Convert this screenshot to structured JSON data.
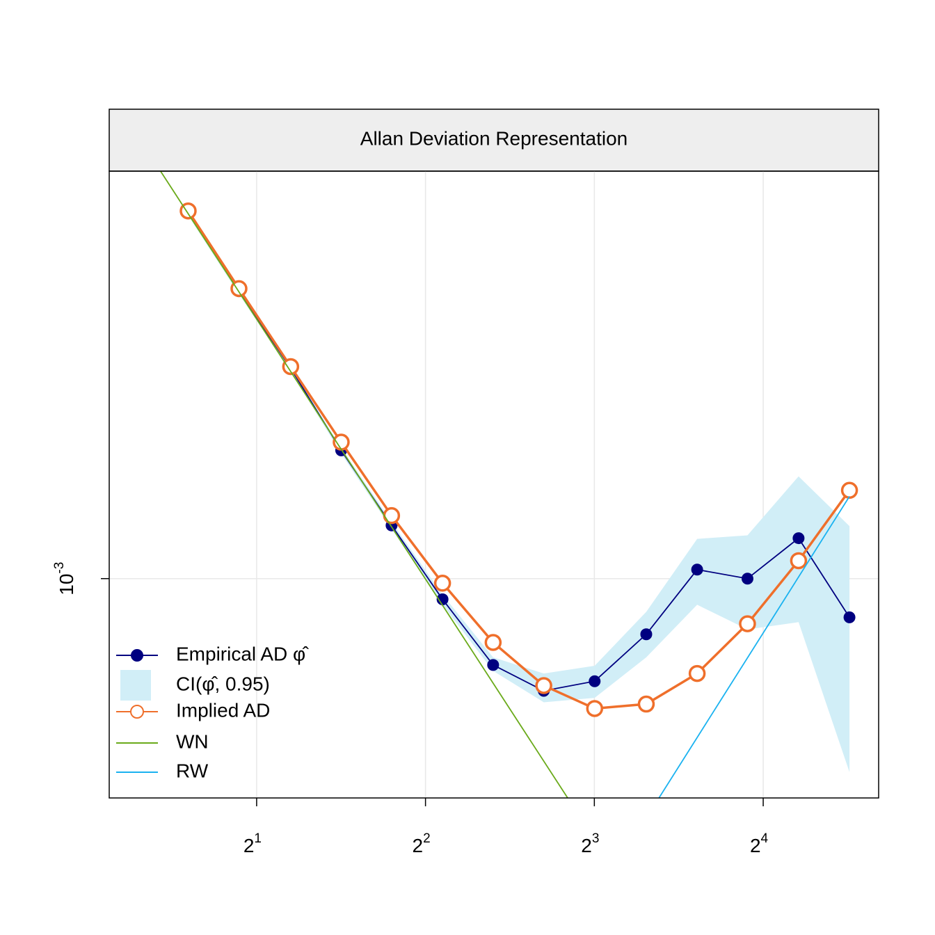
{
  "chart_data": {
    "type": "line",
    "title": "Allan Deviation Representation",
    "x": [
      1.51,
      1.86,
      2.3,
      2.83,
      3.48,
      4.29,
      5.28,
      6.5,
      8.01,
      9.9,
      12.2,
      15.0,
      18.5,
      22.8
    ],
    "series": [
      {
        "name": "Empirical AD φ̂",
        "color": "#000080",
        "marker": "filled",
        "values": [
          0.001623,
          0.001463,
          0.001321,
          0.001185,
          0.001073,
          0.000973,
          0.000892,
          0.000862,
          0.000873,
          0.000929,
          0.001012,
          0.001,
          0.001055,
          0.00095
        ]
      },
      {
        "name": "CI(φ̂, 0.95)",
        "color": "#d1eef7",
        "upper": [
          0.001629,
          0.001468,
          0.001324,
          0.001189,
          0.001078,
          0.000979,
          0.000901,
          0.000882,
          0.000891,
          0.000957,
          0.001054,
          0.001059,
          0.001145,
          0.001072
        ],
        "lower": [
          0.001617,
          0.001457,
          0.001316,
          0.00118,
          0.001068,
          0.000966,
          0.000885,
          0.000849,
          0.000854,
          0.000901,
          0.000966,
          0.000935,
          0.000944,
          0.000774
        ]
      },
      {
        "name": "Implied AD",
        "color": "#ef6f2b",
        "marker": "open",
        "values": [
          0.001627,
          0.001468,
          0.001324,
          0.001198,
          0.001087,
          0.000994,
          0.000919,
          0.000868,
          0.000842,
          0.000847,
          0.000882,
          0.000942,
          0.001024,
          0.001124
        ]
      },
      {
        "name": "WN",
        "color": "#6aaa1a",
        "x": [
          1.348,
          7.17
        ],
        "values": [
          0.001715,
          0.000748
        ]
      },
      {
        "name": "RW",
        "color": "#1ab2f0",
        "x": [
          10.43,
          22.8
        ],
        "values": [
          0.000748,
          0.001115
        ]
      }
    ],
    "xlog_base": 2,
    "ylog_base": 10,
    "xlim": [
      1.092,
      25.7
    ],
    "ylim": [
      0.000748,
      0.001715
    ],
    "xticks": [
      {
        "value": 2,
        "label": "2^1"
      },
      {
        "value": 4,
        "label": "2^2"
      },
      {
        "value": 8,
        "label": "2^3"
      },
      {
        "value": 16,
        "label": "2^4"
      }
    ],
    "yticks": [
      {
        "value": 0.001,
        "label": "10^-3"
      }
    ],
    "grid": true,
    "legend": "bottom-left"
  }
}
